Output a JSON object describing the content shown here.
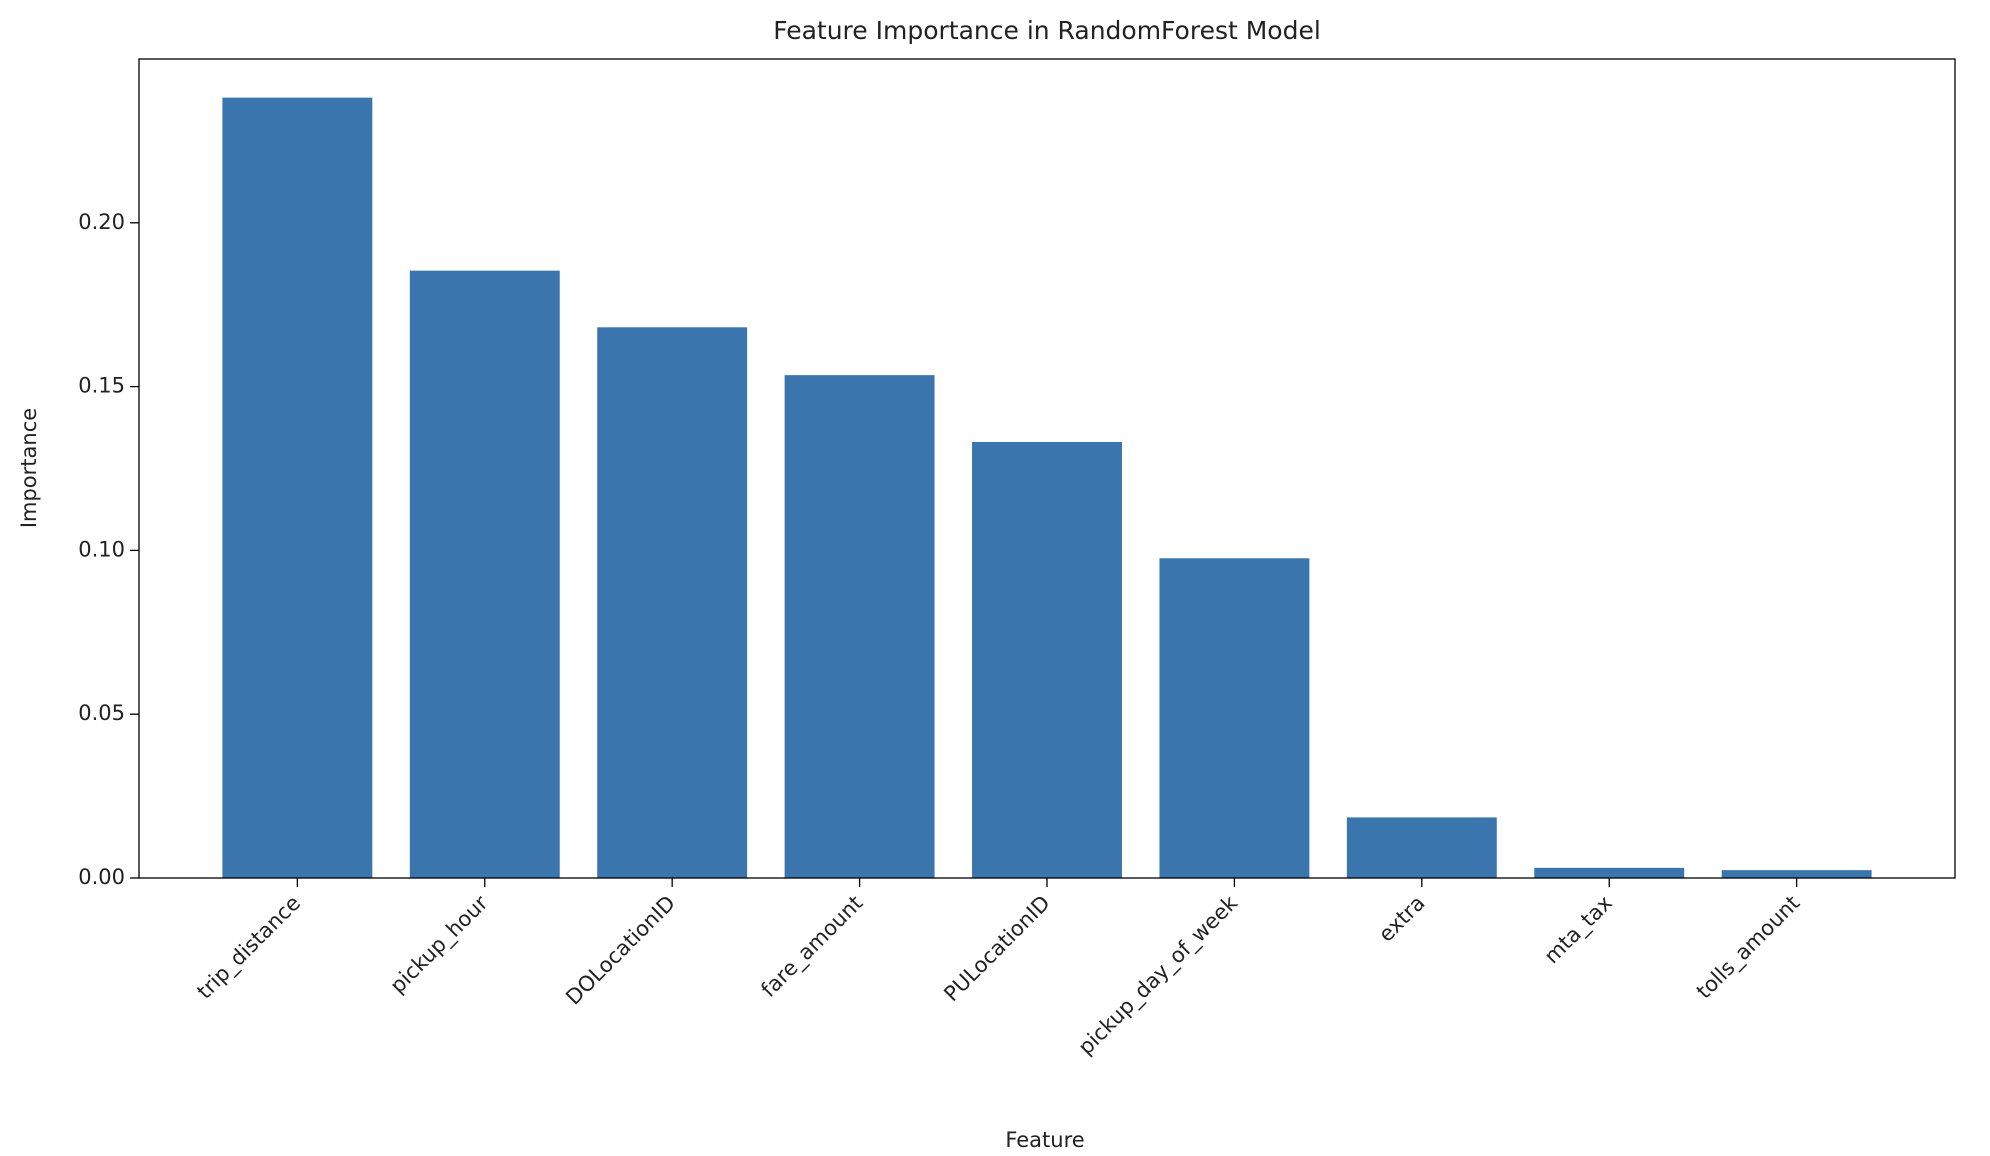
{
  "chart_data": {
    "type": "bar",
    "title": "Feature Importance in RandomForest Model",
    "x_label": "Feature",
    "y_label": "Importance",
    "categories": [
      "trip_distance",
      "pickup_hour",
      "DOLocationID",
      "fare_amount",
      "PULocationID",
      "pickup_day_of_week",
      "extra",
      "mta_tax",
      "tolls_amount"
    ],
    "values": [
      0.2382,
      0.1854,
      0.1681,
      0.1535,
      0.1331,
      0.0976,
      0.0185,
      0.0031,
      0.0024
    ],
    "color": "#3a75ae",
    "ylim": [
      0,
      0.25
    ],
    "yticks": [
      {
        "value": 0,
        "label": "0.00"
      },
      {
        "value": 0.05,
        "label": "0.05"
      },
      {
        "value": 0.1,
        "label": "0.10"
      },
      {
        "value": 0.15,
        "label": "0.15"
      },
      {
        "value": 0.2,
        "label": "0.20"
      }
    ],
    "grid": false
  }
}
